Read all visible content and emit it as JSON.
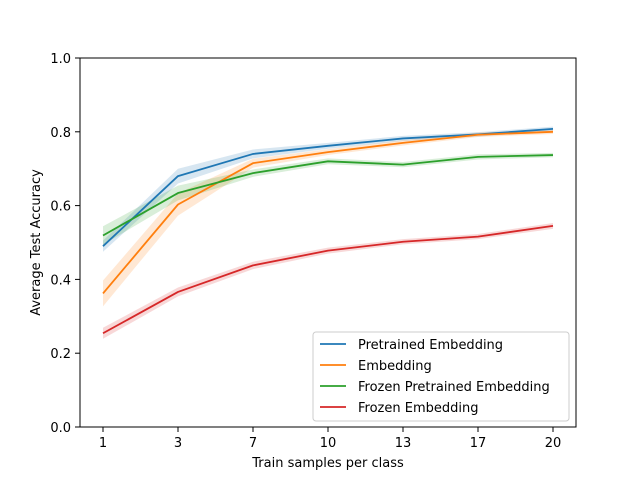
{
  "chart_data": {
    "type": "line",
    "xlabel": "Train samples per class",
    "ylabel": "Average Test Accuracy",
    "x": [
      "1",
      "3",
      "7",
      "10",
      "13",
      "17",
      "20"
    ],
    "ylim": [
      0.0,
      1.0
    ],
    "yticks": [
      "0.0",
      "0.2",
      "0.4",
      "0.6",
      "0.8",
      "1.0"
    ],
    "grid": false,
    "legend_position": "bottom-right",
    "series": [
      {
        "name": "Pretrained Embedding",
        "color": "#1f77b4",
        "values": [
          0.49,
          0.68,
          0.74,
          0.762,
          0.782,
          0.793,
          0.808
        ],
        "band": [
          0.015,
          0.02,
          0.012,
          0.008,
          0.007,
          0.006,
          0.006
        ]
      },
      {
        "name": "Embedding",
        "color": "#ff7f0e",
        "values": [
          0.362,
          0.603,
          0.715,
          0.745,
          0.77,
          0.792,
          0.8
        ],
        "band": [
          0.035,
          0.03,
          0.012,
          0.008,
          0.007,
          0.006,
          0.006
        ]
      },
      {
        "name": "Frozen Pretrained Embedding",
        "color": "#2ca02c",
        "values": [
          0.519,
          0.634,
          0.688,
          0.72,
          0.711,
          0.732,
          0.737
        ],
        "band": [
          0.025,
          0.02,
          0.01,
          0.008,
          0.007,
          0.007,
          0.006
        ]
      },
      {
        "name": "Frozen Embedding",
        "color": "#d62728",
        "values": [
          0.254,
          0.366,
          0.438,
          0.478,
          0.502,
          0.516,
          0.545
        ],
        "band": [
          0.015,
          0.012,
          0.01,
          0.008,
          0.007,
          0.007,
          0.008
        ]
      }
    ]
  }
}
